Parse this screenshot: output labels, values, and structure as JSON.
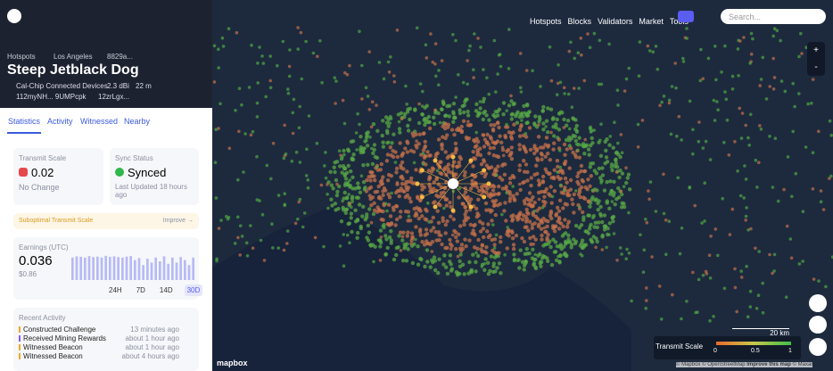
{
  "header": {
    "breadcrumb": [
      "Hotspots",
      "Los Angeles",
      "8829a..."
    ],
    "title": "Steep Jetblack Dog",
    "maker": "Cal-Chip Connected Devices",
    "gain": "2.3 dBi",
    "elevation": "22 m",
    "owner": "112myNH... 9UMPcpk",
    "location_hex": "12zrLgx..."
  },
  "tabs": [
    "Statistics",
    "Activity",
    "Witnessed",
    "Nearby"
  ],
  "transmit_card": {
    "label": "Transmit Scale",
    "value": "0.02",
    "change": "No Change"
  },
  "sync_card": {
    "label": "Sync Status",
    "value": "Synced",
    "updated": "Last Updated 18 hours ago"
  },
  "warning": {
    "text": "Suboptimal Transmit Scale",
    "action": "Improve →"
  },
  "earnings": {
    "label": "Earnings (UTC)",
    "value": "0.036",
    "usd": "$0.86",
    "ranges": [
      "24H",
      "7D",
      "14D",
      "30D"
    ],
    "bars": [
      0.9,
      0.95,
      0.93,
      0.9,
      0.96,
      0.92,
      0.94,
      0.9,
      0.97,
      0.93,
      0.95,
      0.92,
      0.9,
      0.94,
      0.96,
      0.8,
      0.88,
      0.6,
      0.85,
      0.7,
      0.9,
      0.75,
      0.95,
      0.65,
      0.9,
      0.7,
      0.92,
      0.8,
      0.6,
      0.9
    ]
  },
  "recent_activity": {
    "label": "Recent Activity",
    "items": [
      [
        "Constructed Challenge",
        "13 minutes ago"
      ],
      [
        "Received Mining Rewards",
        "about 1 hour ago"
      ],
      [
        "Witnessed Beacon",
        "about 1 hour ago"
      ],
      [
        "Witnessed Beacon",
        "about 4 hours ago"
      ]
    ]
  },
  "nav": {
    "links": [
      "Hotspots",
      "Blocks",
      "Validators",
      "Market",
      "Tools"
    ],
    "search": "Search..."
  },
  "map": {
    "legend_title": "Transmit Scale",
    "legend_ticks": [
      0,
      0.5,
      1
    ],
    "scale": "20 km",
    "logo": "mapbox",
    "attribution": "© Mapbox © OpenStreetMap",
    "improve": "Improve this map",
    "maxar": "© Maxar"
  }
}
